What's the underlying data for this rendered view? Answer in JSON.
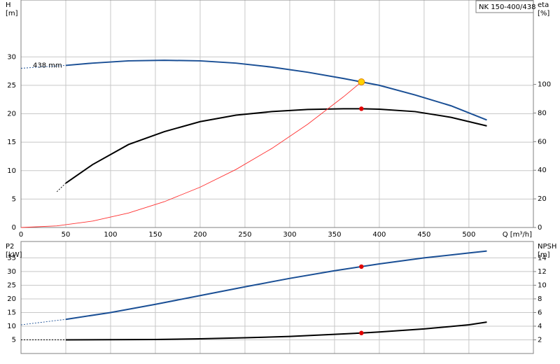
{
  "chart_data": [
    {
      "type": "line",
      "title": "NK 150-400/438",
      "xlabel": "Q [m³/h]",
      "ylabel": "H",
      "yunit": "[m]",
      "y2label": "eta",
      "y2unit": "[%]",
      "annotation": "438 mm",
      "xlim": [
        0,
        572
      ],
      "xticks": [
        0,
        50,
        100,
        150,
        200,
        250,
        300,
        350,
        400,
        450,
        500
      ],
      "ylim": [
        0,
        40
      ],
      "yticks": [
        0,
        5,
        10,
        15,
        20,
        25,
        30
      ],
      "y2lim": [
        0,
        159
      ],
      "y2ticks": [
        0,
        20,
        40,
        60,
        80,
        100
      ],
      "grid": true,
      "series": [
        {
          "color": "#1a4f95",
          "line": "dashed",
          "x": [
            0,
            50
          ],
          "values": [
            28.0,
            28.5
          ]
        },
        {
          "color": "#1a4f95",
          "line": "solid",
          "x": [
            50,
            80,
            120,
            160,
            200,
            240,
            280,
            320,
            360,
            380,
            400,
            440,
            480,
            520
          ],
          "values": [
            28.5,
            28.9,
            29.3,
            29.4,
            29.3,
            28.9,
            28.2,
            27.3,
            26.2,
            25.6,
            25.0,
            23.3,
            21.4,
            18.9
          ]
        },
        {
          "color": "#000000",
          "line": "dashed",
          "axis": "y2",
          "x": [
            40,
            50
          ],
          "values": [
            25,
            31
          ]
        },
        {
          "color": "#000000",
          "line": "solid",
          "axis": "y2",
          "x": [
            50,
            80,
            120,
            160,
            200,
            240,
            280,
            320,
            360,
            380,
            400,
            440,
            480,
            520
          ],
          "values": [
            31,
            44,
            58,
            67,
            74,
            78.5,
            81,
            82.5,
            83,
            83,
            82.7,
            81,
            77,
            71
          ]
        },
        {
          "color": "#ff3030",
          "line": "thin",
          "x": [
            0,
            40,
            80,
            120,
            160,
            200,
            240,
            280,
            320,
            360,
            380
          ],
          "values": [
            0,
            0.28,
            1.13,
            2.55,
            4.54,
            7.09,
            10.21,
            13.9,
            18.15,
            22.98,
            25.6
          ]
        },
        {
          "color": "#ffd200",
          "marker": "circle",
          "x": [
            380
          ],
          "values": [
            25.6
          ]
        },
        {
          "color": "#e00000",
          "marker": "circle",
          "axis": "y2",
          "x": [
            380
          ],
          "values": [
            83
          ]
        }
      ]
    },
    {
      "type": "line",
      "ylabel": "P2",
      "yunit": "[kW]",
      "y2label": "NPSH",
      "y2unit": "[m]",
      "xlim": [
        0,
        572
      ],
      "xticks": [
        0,
        50,
        100,
        150,
        200,
        250,
        300,
        350,
        400,
        450,
        500
      ],
      "ylim": [
        0,
        41
      ],
      "yticks": [
        5,
        10,
        15,
        20,
        25,
        30,
        35
      ],
      "y2lim": [
        0,
        16.4
      ],
      "y2ticks": [
        2,
        4,
        6,
        8,
        10,
        12,
        14
      ],
      "grid": true,
      "series": [
        {
          "color": "#1a4f95",
          "line": "dashed",
          "x": [
            0,
            50
          ],
          "values": [
            10.5,
            12.5
          ]
        },
        {
          "color": "#1a4f95",
          "line": "solid",
          "x": [
            50,
            100,
            150,
            200,
            250,
            300,
            350,
            380,
            400,
            450,
            500,
            520
          ],
          "values": [
            12.5,
            15,
            18,
            21.2,
            24.4,
            27.5,
            30.3,
            31.8,
            32.8,
            35,
            36.8,
            37.5
          ]
        },
        {
          "color": "#000000",
          "line": "dashed",
          "axis": "y2",
          "x": [
            0,
            50
          ],
          "values": [
            2.0,
            2.0
          ]
        },
        {
          "color": "#000000",
          "line": "solid",
          "axis": "y2",
          "x": [
            50,
            100,
            150,
            200,
            250,
            300,
            350,
            380,
            400,
            450,
            500,
            520
          ],
          "values": [
            2.0,
            2.02,
            2.05,
            2.15,
            2.3,
            2.5,
            2.8,
            3.0,
            3.15,
            3.6,
            4.2,
            4.6
          ]
        },
        {
          "color": "#e00000",
          "marker": "circle",
          "x": [
            380
          ],
          "values": [
            31.8
          ]
        },
        {
          "color": "#e00000",
          "marker": "circle",
          "axis": "y2",
          "x": [
            380
          ],
          "values": [
            3.0
          ]
        }
      ]
    }
  ]
}
